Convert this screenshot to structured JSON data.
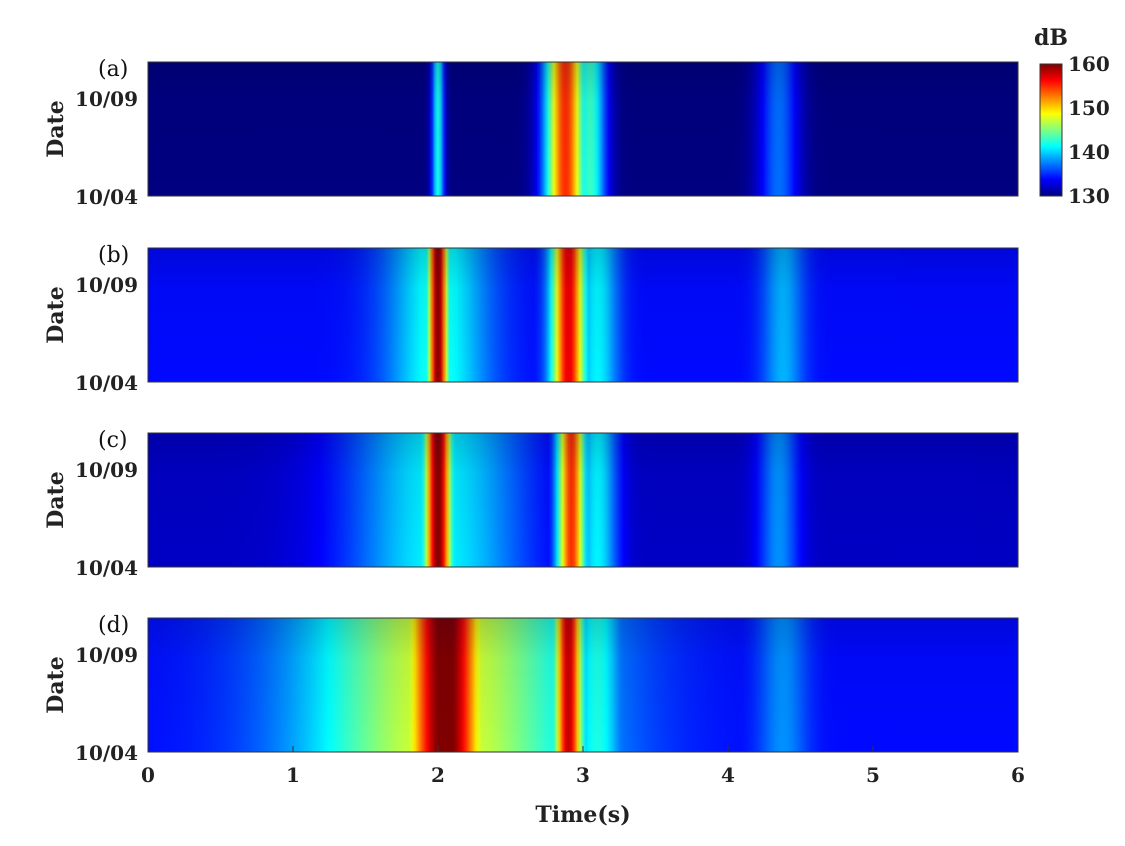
{
  "chart_data": [
    {
      "type": "heatmap",
      "panel_label": "(a)",
      "ylabel": "Date",
      "yticklabels": [
        "10/09",
        "10/04"
      ],
      "x_range": [
        0,
        6
      ],
      "color_range_db": [
        130,
        160
      ],
      "background_db": 130,
      "bands": [
        {
          "center": 2.0,
          "half_width": 0.03,
          "peak_db": 142
        },
        {
          "center": 2.88,
          "half_width": 0.1,
          "peak_db": 155
        },
        {
          "center": 3.05,
          "half_width": 0.08,
          "peak_db": 143
        },
        {
          "center": 4.35,
          "half_width": 0.1,
          "peak_db": 137
        }
      ]
    },
    {
      "type": "heatmap",
      "panel_label": "(b)",
      "ylabel": "Date",
      "yticklabels": [
        "10/09",
        "10/04"
      ],
      "x_range": [
        0,
        6
      ],
      "color_range_db": [
        130,
        160
      ],
      "background_db": 134,
      "bands": [
        {
          "center": 2.0,
          "half_width": 0.05,
          "peak_db": 160
        },
        {
          "center": 2.0,
          "half_width": 0.25,
          "peak_db": 142
        },
        {
          "center": 2.9,
          "half_width": 0.08,
          "peak_db": 157
        },
        {
          "center": 3.1,
          "half_width": 0.1,
          "peak_db": 141
        },
        {
          "center": 4.38,
          "half_width": 0.1,
          "peak_db": 139
        }
      ]
    },
    {
      "type": "heatmap",
      "panel_label": "(c)",
      "ylabel": "Date",
      "yticklabels": [
        "10/09",
        "10/04"
      ],
      "x_range": [
        0,
        6
      ],
      "color_range_db": [
        130,
        160
      ],
      "background_db": 132,
      "bands": [
        {
          "center": 2.0,
          "half_width": 0.07,
          "peak_db": 160
        },
        {
          "center": 2.0,
          "half_width": 0.45,
          "peak_db": 141
        },
        {
          "center": 2.92,
          "half_width": 0.07,
          "peak_db": 155
        },
        {
          "center": 3.1,
          "half_width": 0.1,
          "peak_db": 141
        },
        {
          "center": 4.35,
          "half_width": 0.1,
          "peak_db": 138
        }
      ]
    },
    {
      "type": "heatmap",
      "panel_label": "(d)",
      "ylabel": "Date",
      "yticklabels": [
        "10/09",
        "10/04"
      ],
      "x_range": [
        0,
        6
      ],
      "color_range_db": [
        130,
        160
      ],
      "background_db": 134,
      "bands": [
        {
          "center": 2.05,
          "half_width": 0.2,
          "peak_db": 161
        },
        {
          "center": 2.05,
          "half_width": 0.7,
          "peak_db": 148
        },
        {
          "center": 2.9,
          "half_width": 0.07,
          "peak_db": 158
        },
        {
          "center": 3.1,
          "half_width": 0.12,
          "peak_db": 142
        },
        {
          "center": 4.38,
          "half_width": 0.12,
          "peak_db": 138
        }
      ]
    }
  ],
  "xlabel": "Time(s)",
  "xticks": [
    0,
    1,
    2,
    3,
    4,
    5,
    6
  ],
  "colorbar": {
    "title": "dB",
    "ticks": [
      160,
      150,
      140,
      130
    ],
    "range": [
      130,
      160
    ],
    "colormap": "jet"
  }
}
